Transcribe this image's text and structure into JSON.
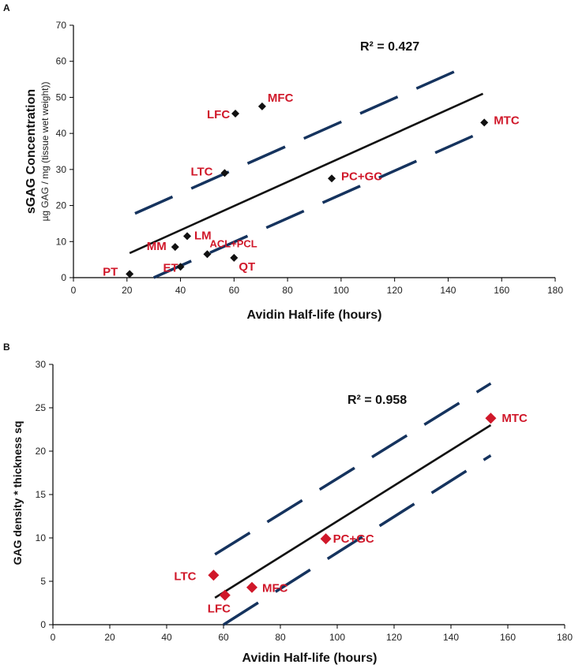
{
  "chart_data": [
    {
      "type": "scatter",
      "panel_label": "A",
      "xlabel": "Avidin Half-life (hours)",
      "ylabel": "sGAG Concentration",
      "ylabel_sub": "µg GAG / mg (tissue wet weight))",
      "xlim": [
        0,
        180
      ],
      "ylim": [
        0,
        70
      ],
      "xticks": [
        0,
        20,
        40,
        60,
        80,
        100,
        120,
        140,
        160,
        180
      ],
      "yticks": [
        0,
        10,
        20,
        30,
        40,
        50,
        60,
        70
      ],
      "r_squared_label": "R² = 0.427",
      "marker_color": "#111111",
      "label_color": "#d0182a",
      "points": [
        {
          "label": "PT",
          "x": 21,
          "y": 1
        },
        {
          "label": "ET",
          "x": 40,
          "y": 3
        },
        {
          "label": "MM",
          "x": 38,
          "y": 8.5
        },
        {
          "label": "LM",
          "x": 42.5,
          "y": 11.5
        },
        {
          "label": "ACL+PCL",
          "x": 50,
          "y": 6.5
        },
        {
          "label": "QT",
          "x": 60,
          "y": 5.5
        },
        {
          "label": "LTC",
          "x": 56.5,
          "y": 29
        },
        {
          "label": "LFC",
          "x": 60.5,
          "y": 45.5
        },
        {
          "label": "MFC",
          "x": 70.5,
          "y": 47.5
        },
        {
          "label": "PC+GC",
          "x": 96.5,
          "y": 27.5
        },
        {
          "label": "MTC",
          "x": 153.5,
          "y": 43
        }
      ],
      "fit_line": {
        "x": [
          21,
          153
        ],
        "y": [
          6.8,
          51
        ]
      },
      "ci_upper": {
        "x": [
          23,
          148
        ],
        "y": [
          17.8,
          59
        ]
      },
      "ci_lower": {
        "x": [
          30,
          153
        ],
        "y": [
          0,
          40.5
        ]
      }
    },
    {
      "type": "scatter",
      "panel_label": "B",
      "xlabel": "Avidin Half-life (hours)",
      "ylabel": "GAG density * thickness sq",
      "xlim": [
        0,
        180
      ],
      "ylim": [
        0,
        30
      ],
      "xticks": [
        0,
        20,
        40,
        60,
        80,
        100,
        120,
        140,
        160,
        180
      ],
      "ytick_labels": [
        "0",
        "5",
        "10",
        "15",
        "20",
        "25",
        "30"
      ],
      "xtick_labels": [
        "0",
        "20",
        "40",
        "60",
        "80",
        "100",
        "120",
        "140",
        "160",
        "180"
      ],
      "yticks": [
        0,
        5,
        10,
        15,
        20,
        25,
        30
      ],
      "r_squared_label": "R² = 0.958",
      "marker_color": "#d0182a",
      "label_color": "#d0182a",
      "points": [
        {
          "label": "LTC",
          "x": 56.5,
          "y": 5.7
        },
        {
          "label": "LFC",
          "x": 60.5,
          "y": 3.4
        },
        {
          "label": "MFC",
          "x": 70,
          "y": 4.3
        },
        {
          "label": "PC+GC",
          "x": 96,
          "y": 9.9
        },
        {
          "label": "MTC",
          "x": 154,
          "y": 23.8
        }
      ],
      "fit_line": {
        "x": [
          57,
          154
        ],
        "y": [
          3.1,
          23
        ]
      },
      "ci_upper": {
        "x": [
          57,
          154
        ],
        "y": [
          8.1,
          27.8
        ]
      },
      "ci_lower": {
        "x": [
          60,
          154
        ],
        "y": [
          0,
          19.5
        ]
      }
    }
  ]
}
